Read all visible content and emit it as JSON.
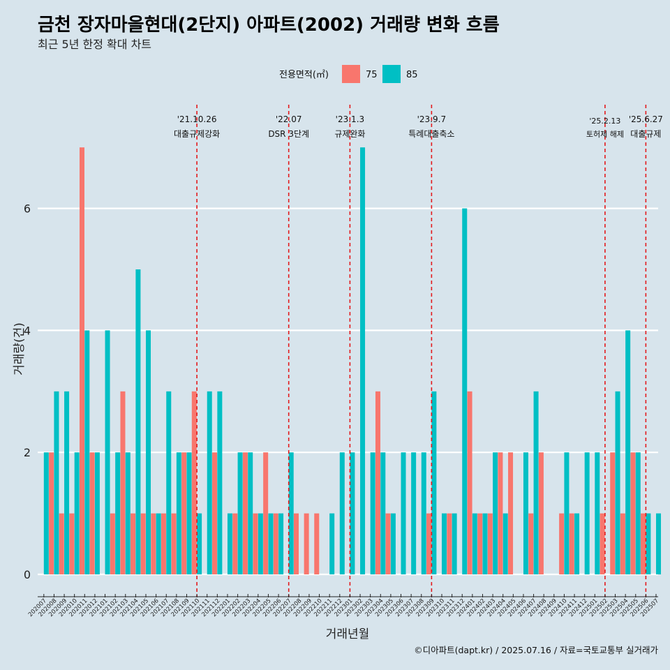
{
  "colors": {
    "background": "#d7e4ec",
    "area75": "#f8766d",
    "area85": "#00bfc4",
    "event_line": "#e31a1c",
    "grid": "#ffffff"
  },
  "chart_data": {
    "type": "bar",
    "title": "금천 장자마을현대(2단지) 아파트(2002) 거래량 변화 흐름",
    "subtitle": "최근 5년 한정 확대 차트",
    "xlabel": "거래년월",
    "ylabel": "거래량(건)",
    "legend": {
      "title": "전용면적(㎡)",
      "position": "top"
    },
    "ylim": [
      0,
      7
    ],
    "yticks": [
      "0",
      "2",
      "4",
      "6"
    ],
    "grid": true,
    "caption": "©디아파트(dapt.kr) / 2025.07.16 / 자료=국토교통부 실거래가",
    "categories": [
      "202007",
      "202008",
      "202009",
      "202010",
      "202011",
      "202012",
      "202101",
      "202102",
      "202103",
      "202104",
      "202105",
      "202106",
      "202107",
      "202108",
      "202109",
      "202110",
      "202111",
      "202112",
      "202201",
      "202202",
      "202203",
      "202204",
      "202205",
      "202206",
      "202207",
      "202208",
      "202209",
      "202210",
      "202211",
      "202212",
      "202301",
      "202302",
      "202303",
      "202304",
      "202305",
      "202306",
      "202307",
      "202308",
      "202309",
      "202310",
      "202311",
      "202312",
      "202401",
      "202402",
      "202403",
      "202404",
      "202405",
      "202406",
      "202407",
      "202408",
      "202409",
      "202410",
      "202411",
      "202412",
      "202501",
      "202502",
      "202503",
      "202504",
      "202505",
      "202506",
      "202507"
    ],
    "series": [
      {
        "name": "75",
        "values": [
          0,
          2,
          1,
          1,
          7,
          2,
          0,
          1,
          3,
          1,
          1,
          1,
          1,
          1,
          2,
          3,
          0,
          2,
          0,
          1,
          2,
          1,
          2,
          1,
          0,
          1,
          1,
          1,
          0,
          0,
          0,
          0,
          0,
          3,
          1,
          0,
          0,
          0,
          1,
          0,
          1,
          0,
          3,
          1,
          1,
          2,
          2,
          0,
          1,
          2,
          0,
          1,
          1,
          0,
          0,
          1,
          2,
          1,
          2,
          1,
          0
        ]
      },
      {
        "name": "85",
        "values": [
          2,
          3,
          3,
          2,
          4,
          2,
          4,
          2,
          2,
          5,
          4,
          1,
          3,
          2,
          2,
          1,
          3,
          3,
          1,
          2,
          2,
          1,
          1,
          1,
          2,
          0,
          0,
          0,
          1,
          2,
          2,
          7,
          2,
          2,
          1,
          2,
          2,
          2,
          3,
          1,
          1,
          6,
          1,
          1,
          2,
          1,
          0,
          2,
          3,
          0,
          0,
          2,
          1,
          2,
          2,
          0,
          3,
          4,
          2,
          1,
          1
        ]
      }
    ],
    "annotations": [
      {
        "date": "'21.10.26",
        "label": "대출규제강화",
        "at": "202110"
      },
      {
        "date": "'22.07",
        "label": "DSR 3단계",
        "at": "202207"
      },
      {
        "date": "'23.1.3",
        "label": "규제완화",
        "at": "202301"
      },
      {
        "date": "'23.9.7",
        "label": "특례대출축소",
        "at": "202309"
      },
      {
        "date": "'25.2.13",
        "label": "토허제 해제",
        "at": "202502"
      },
      {
        "date": "'25.6.27",
        "label": "대출규제",
        "at": "202506"
      }
    ]
  }
}
